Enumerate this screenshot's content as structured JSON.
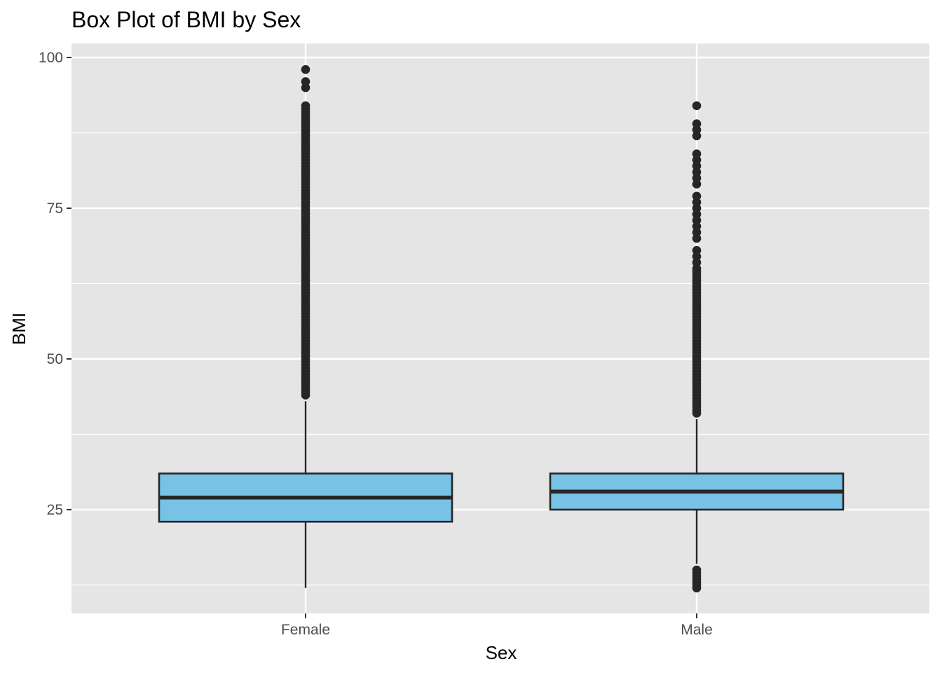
{
  "chart_data": {
    "type": "boxplot",
    "title": "Box Plot of BMI by Sex",
    "xlabel": "Sex",
    "ylabel": "BMI",
    "categories": [
      "Female",
      "Male"
    ],
    "ylim": [
      8,
      102
    ],
    "yticks": [
      25,
      50,
      75,
      100
    ],
    "grid": true,
    "legend": "none",
    "colors": {
      "panel": "#e5e5e5",
      "grid": "#ffffff",
      "box_fill": "#77c2e5",
      "box_stroke": "#262626",
      "outlier": "#262626",
      "tick": "#333333"
    },
    "boxes": [
      {
        "category": "Female",
        "whisker_low": 12,
        "q1": 23,
        "median": 27,
        "q3": 31,
        "whisker_high": 43,
        "outliers": [
          44,
          44.5,
          45,
          45.5,
          46,
          46.5,
          47,
          47.5,
          48,
          48.5,
          49,
          49.5,
          50,
          50.5,
          51,
          51.5,
          52,
          52.5,
          53,
          53.5,
          54,
          54.5,
          55,
          55.5,
          56,
          56.5,
          57,
          57.5,
          58,
          58.5,
          59,
          59.5,
          60,
          60.5,
          61,
          61.5,
          62,
          62.5,
          63,
          63.5,
          64,
          64.5,
          65,
          65.5,
          66,
          66.5,
          67,
          67.5,
          68,
          68.5,
          69,
          69.5,
          70,
          70.5,
          71,
          71.5,
          72,
          72.5,
          73,
          73.5,
          74,
          74.5,
          75,
          75.5,
          76,
          76.5,
          77,
          77.5,
          78,
          78.5,
          79,
          79.5,
          80,
          80.5,
          81,
          81.5,
          82,
          82.5,
          83,
          83.5,
          84,
          84.5,
          85,
          85.5,
          86,
          86.5,
          87,
          87.5,
          88,
          88.5,
          89,
          89.5,
          90,
          90.5,
          91,
          91.5,
          92,
          95,
          96,
          98
        ]
      },
      {
        "category": "Male",
        "whisker_low": 16,
        "q1": 25,
        "median": 28,
        "q3": 31,
        "whisker_high": 40,
        "outliers": [
          12,
          12.5,
          13,
          13.5,
          14,
          14.5,
          15,
          41,
          41.5,
          42,
          42.5,
          43,
          43.5,
          44,
          44.5,
          45,
          45.5,
          46,
          46.5,
          47,
          47.5,
          48,
          48.5,
          49,
          49.5,
          50,
          50.5,
          51,
          51.5,
          52,
          52.5,
          53,
          53.5,
          54,
          54.5,
          55,
          55.5,
          56,
          56.5,
          57,
          57.5,
          58,
          58.5,
          59,
          59.5,
          60,
          60.5,
          61,
          61.5,
          62,
          62.5,
          63,
          63.5,
          64,
          64.5,
          65,
          66,
          67,
          68,
          70,
          71,
          72,
          73,
          74,
          75,
          76,
          77,
          79,
          80,
          81,
          82,
          83,
          84,
          87,
          88,
          89,
          92
        ]
      }
    ]
  }
}
